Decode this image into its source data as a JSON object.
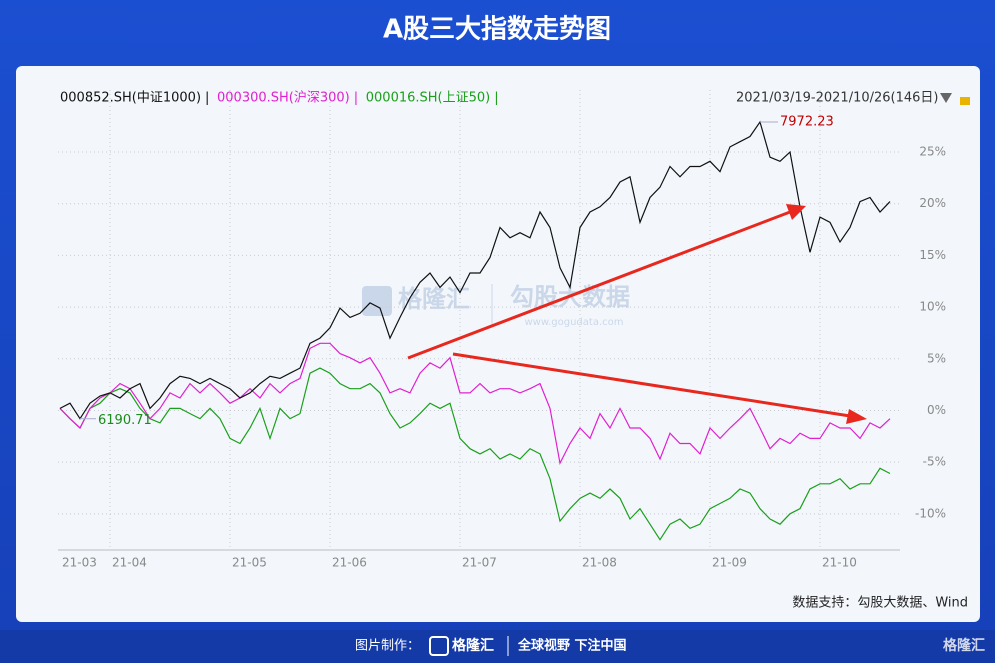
{
  "page": {
    "title": "A股三大指数走势图",
    "range": "2021/03/19-2021/10/26(146日)",
    "source": "数据支持：勾股大数据、Wind",
    "footer_made": "图片制作：",
    "footer_brand": "格隆汇",
    "footer_slogan": "全球视野 下注中国",
    "watermark_left": "格隆汇",
    "watermark_right": "勾股大数据",
    "watermark_url": "www.gogudata.com",
    "corner_logo": "格隆汇"
  },
  "chart_data": {
    "type": "line",
    "categories": [
      "21-03",
      null,
      null,
      null,
      null,
      "21-04",
      null,
      null,
      null,
      null,
      null,
      null,
      null,
      null,
      null,
      null,
      null,
      "21-05",
      null,
      null,
      null,
      null,
      null,
      null,
      null,
      null,
      null,
      "21-06",
      null,
      null,
      null,
      null,
      null,
      null,
      null,
      null,
      null,
      null,
      null,
      null,
      "21-07",
      null,
      null,
      null,
      null,
      null,
      null,
      null,
      null,
      null,
      null,
      null,
      "21-08",
      null,
      null,
      null,
      null,
      null,
      null,
      null,
      null,
      null,
      null,
      null,
      null,
      "21-09",
      null,
      null,
      null,
      null,
      null,
      null,
      null,
      null,
      null,
      null,
      "21-10",
      null,
      null,
      null,
      null,
      null,
      null,
      null
    ],
    "series": [
      {
        "name": "000852.SH(中证1000)",
        "color": "#111111",
        "values": [
          0.2,
          0.7,
          -0.8,
          0.7,
          1.4,
          1.7,
          1.2,
          2.1,
          2.6,
          0.2,
          1.2,
          2.6,
          3.3,
          3.1,
          2.6,
          3.1,
          2.6,
          2.1,
          1.2,
          1.7,
          2.6,
          3.3,
          3.1,
          3.6,
          4.1,
          6.5,
          7.0,
          8.0,
          9.9,
          9.0,
          9.4,
          10.4,
          9.9,
          7.0,
          9.0,
          10.9,
          12.4,
          13.3,
          11.9,
          12.9,
          11.4,
          13.3,
          13.3,
          14.8,
          17.7,
          16.7,
          17.2,
          16.7,
          19.2,
          17.7,
          13.8,
          11.9,
          17.7,
          19.2,
          19.7,
          20.6,
          22.1,
          22.6,
          18.2,
          20.6,
          21.6,
          23.6,
          22.6,
          23.6,
          23.6,
          24.1,
          23.1,
          25.5,
          26.0,
          26.5,
          27.9,
          24.5,
          24.1,
          25.0,
          19.7,
          15.3,
          18.7,
          18.2,
          16.3,
          17.7,
          20.2,
          20.6,
          19.2,
          20.2
        ]
      },
      {
        "name": "000300.SH(沪深300)",
        "color": "#e020d0",
        "values": [
          0.2,
          -0.8,
          -1.7,
          0.2,
          1.2,
          1.7,
          2.6,
          2.1,
          0.7,
          -0.8,
          0.2,
          1.7,
          1.2,
          2.6,
          1.7,
          2.6,
          1.7,
          0.7,
          1.2,
          2.1,
          1.2,
          2.6,
          1.7,
          2.6,
          3.1,
          6.0,
          6.5,
          6.5,
          5.5,
          5.1,
          4.6,
          5.1,
          3.6,
          1.7,
          2.1,
          1.7,
          3.6,
          4.6,
          4.1,
          5.1,
          1.7,
          1.7,
          2.6,
          1.7,
          2.1,
          2.1,
          1.7,
          2.1,
          2.6,
          0.2,
          -5.1,
          -3.2,
          -1.7,
          -2.7,
          -0.3,
          -1.7,
          0.2,
          -1.7,
          -1.7,
          -2.7,
          -4.7,
          -2.2,
          -3.2,
          -3.2,
          -4.2,
          -1.7,
          -2.7,
          -1.7,
          -0.8,
          0.2,
          -1.7,
          -3.7,
          -2.7,
          -3.2,
          -2.2,
          -2.7,
          -2.7,
          -1.2,
          -1.7,
          -1.7,
          -2.7,
          -1.2,
          -1.7,
          -0.8
        ]
      },
      {
        "name": "000016.SH(上证50)",
        "color": "#1aa01a",
        "values": [
          0.2,
          -0.8,
          -1.7,
          0.2,
          0.7,
          1.7,
          2.1,
          1.7,
          0.2,
          -0.8,
          -1.2,
          0.2,
          0.2,
          -0.3,
          -0.8,
          0.2,
          -0.8,
          -2.7,
          -3.2,
          -1.7,
          0.2,
          -2.7,
          0.2,
          -0.8,
          -0.3,
          3.6,
          4.1,
          3.6,
          2.6,
          2.1,
          2.1,
          2.6,
          1.7,
          -0.3,
          -1.7,
          -1.2,
          -0.3,
          0.7,
          0.2,
          0.7,
          -2.7,
          -3.7,
          -4.2,
          -3.7,
          -4.7,
          -4.2,
          -4.7,
          -3.7,
          -4.2,
          -6.6,
          -10.7,
          -9.5,
          -8.5,
          -8.0,
          -8.5,
          -7.6,
          -8.5,
          -10.5,
          -9.5,
          -11.0,
          -12.5,
          -11.0,
          -10.5,
          -11.4,
          -11.0,
          -9.5,
          -9.0,
          -8.5,
          -7.6,
          -8.0,
          -9.5,
          -10.5,
          -11.0,
          -10.0,
          -9.5,
          -7.6,
          -7.1,
          -7.1,
          -6.6,
          -7.6,
          -7.1,
          -7.1,
          -5.6,
          -6.1
        ]
      }
    ],
    "annotations": [
      {
        "text": "7972.23",
        "color": "#c00000"
      },
      {
        "text": "6190.71",
        "color": "#1a8a1a"
      }
    ],
    "ylim": [
      -13.5,
      31
    ],
    "yticks": [
      {
        "value": -10,
        "label": "-10%"
      },
      {
        "value": -5,
        "label": "-5%"
      },
      {
        "value": 0,
        "label": "0%"
      },
      {
        "value": 5,
        "label": "5%"
      },
      {
        "value": 10,
        "label": "10%"
      },
      {
        "value": 15,
        "label": "15%"
      },
      {
        "value": 20,
        "label": "20%"
      },
      {
        "value": 25,
        "label": "25%"
      }
    ],
    "grid": true
  }
}
